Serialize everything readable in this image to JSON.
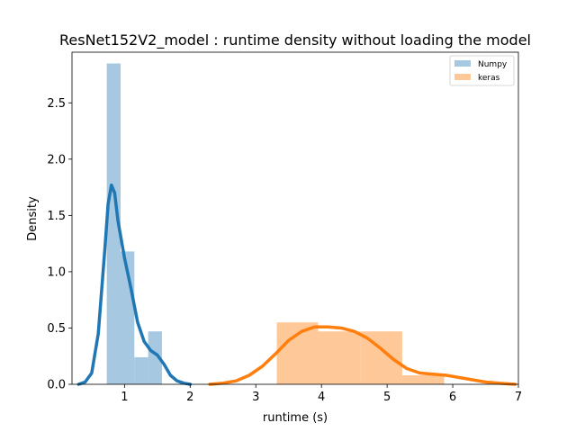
{
  "chart_data": {
    "type": "histogram-density",
    "title": "ResNet152V2_model : runtime density without loading the model",
    "xlabel": "runtime (s)",
    "ylabel": "Density",
    "xlim": [
      0.2,
      7.0
    ],
    "ylim": [
      0,
      2.95
    ],
    "x_ticks": [
      1,
      2,
      3,
      4,
      5,
      6,
      7
    ],
    "y_ticks": [
      0.0,
      0.5,
      1.0,
      1.5,
      2.0,
      2.5
    ],
    "x_tick_labels": [
      "1",
      "2",
      "3",
      "4",
      "5",
      "6",
      "7"
    ],
    "y_tick_labels": [
      "0.0",
      "0.5",
      "1.0",
      "1.5",
      "2.0",
      "2.5"
    ],
    "legend_position": "top-right",
    "series": [
      {
        "name": "Numpy",
        "bar_color": "#a6c8e0",
        "line_color": "#1f77b4",
        "bins": [
          {
            "x0": 0.73,
            "x1": 0.94,
            "density": 2.85
          },
          {
            "x0": 0.94,
            "x1": 1.15,
            "density": 1.18
          },
          {
            "x0": 1.15,
            "x1": 1.36,
            "density": 0.24
          },
          {
            "x0": 1.36,
            "x1": 1.57,
            "density": 0.47
          }
        ],
        "kde": [
          [
            0.3,
            0.0
          ],
          [
            0.4,
            0.02
          ],
          [
            0.5,
            0.1
          ],
          [
            0.6,
            0.45
          ],
          [
            0.7,
            1.2
          ],
          [
            0.75,
            1.6
          ],
          [
            0.8,
            1.77
          ],
          [
            0.85,
            1.7
          ],
          [
            0.9,
            1.45
          ],
          [
            1.0,
            1.12
          ],
          [
            1.1,
            0.85
          ],
          [
            1.2,
            0.55
          ],
          [
            1.3,
            0.38
          ],
          [
            1.4,
            0.3
          ],
          [
            1.5,
            0.26
          ],
          [
            1.6,
            0.18
          ],
          [
            1.7,
            0.08
          ],
          [
            1.8,
            0.03
          ],
          [
            1.9,
            0.01
          ],
          [
            2.0,
            0.0
          ]
        ]
      },
      {
        "name": "keras",
        "bar_color": "#ffc898",
        "line_color": "#ff7f0e",
        "bins": [
          {
            "x0": 3.32,
            "x1": 3.95,
            "density": 0.55
          },
          {
            "x0": 3.95,
            "x1": 4.59,
            "density": 0.47
          },
          {
            "x0": 4.59,
            "x1": 5.23,
            "density": 0.47
          },
          {
            "x0": 5.23,
            "x1": 5.87,
            "density": 0.08
          }
        ],
        "kde": [
          [
            2.3,
            0.0
          ],
          [
            2.5,
            0.01
          ],
          [
            2.7,
            0.03
          ],
          [
            2.9,
            0.08
          ],
          [
            3.1,
            0.16
          ],
          [
            3.3,
            0.27
          ],
          [
            3.5,
            0.39
          ],
          [
            3.7,
            0.47
          ],
          [
            3.9,
            0.51
          ],
          [
            4.1,
            0.51
          ],
          [
            4.3,
            0.5
          ],
          [
            4.5,
            0.47
          ],
          [
            4.7,
            0.41
          ],
          [
            4.9,
            0.32
          ],
          [
            5.1,
            0.22
          ],
          [
            5.3,
            0.14
          ],
          [
            5.5,
            0.1
          ],
          [
            5.7,
            0.09
          ],
          [
            5.9,
            0.08
          ],
          [
            6.1,
            0.06
          ],
          [
            6.3,
            0.04
          ],
          [
            6.5,
            0.02
          ],
          [
            6.7,
            0.01
          ],
          [
            6.95,
            0.0
          ]
        ]
      }
    ]
  }
}
